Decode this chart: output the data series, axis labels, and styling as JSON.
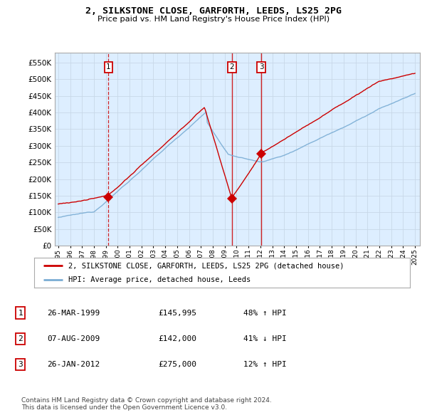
{
  "title": "2, SILKSTONE CLOSE, GARFORTH, LEEDS, LS25 2PG",
  "subtitle": "Price paid vs. HM Land Registry's House Price Index (HPI)",
  "ytick_values": [
    0,
    50000,
    100000,
    150000,
    200000,
    250000,
    300000,
    350000,
    400000,
    450000,
    500000,
    550000
  ],
  "ylim": [
    0,
    580000
  ],
  "sale_dates": [
    1999.23,
    2009.59,
    2012.07
  ],
  "sale_prices": [
    145995,
    142000,
    275000
  ],
  "sale_labels": [
    "1",
    "2",
    "3"
  ],
  "hpi_color": "#7aadd4",
  "price_color": "#cc0000",
  "chart_bg": "#ddeeff",
  "legend_price_label": "2, SILKSTONE CLOSE, GARFORTH, LEEDS, LS25 2PG (detached house)",
  "legend_hpi_label": "HPI: Average price, detached house, Leeds",
  "table_rows": [
    [
      "1",
      "26-MAR-1999",
      "£145,995",
      "48% ↑ HPI"
    ],
    [
      "2",
      "07-AUG-2009",
      "£142,000",
      "41% ↓ HPI"
    ],
    [
      "3",
      "26-JAN-2012",
      "£275,000",
      "12% ↑ HPI"
    ]
  ],
  "footnote": "Contains HM Land Registry data © Crown copyright and database right 2024.\nThis data is licensed under the Open Government Licence v3.0.",
  "background_color": "#ffffff",
  "grid_color": "#c8d8e8"
}
